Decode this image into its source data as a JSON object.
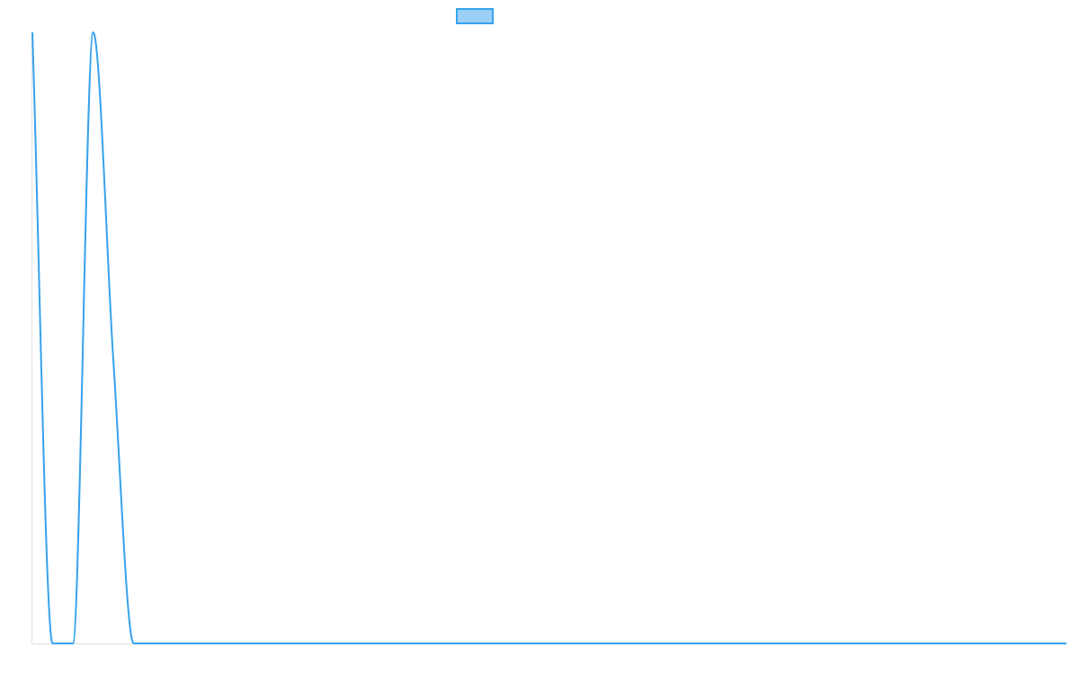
{
  "chart_data": {
    "type": "line",
    "title": "",
    "xlabel": "",
    "ylabel": "",
    "legend": {
      "position": "top",
      "entries": [
        ""
      ]
    },
    "grid": false,
    "ylim": [
      0,
      1
    ],
    "series": [
      {
        "values": [
          1,
          0,
          0,
          1,
          0.46,
          0,
          0,
          0,
          0,
          0,
          0,
          0,
          0,
          0,
          0,
          0,
          0,
          0,
          0,
          0,
          0,
          0,
          0,
          0,
          0,
          0,
          0,
          0,
          0,
          0,
          0,
          0,
          0,
          0,
          0,
          0,
          0,
          0,
          0,
          0,
          0,
          0,
          0,
          0,
          0,
          0,
          0,
          0,
          0,
          0,
          0,
          0
        ],
        "border_color": "#36a2eb",
        "fill_color": "#9ad0f5"
      }
    ]
  }
}
